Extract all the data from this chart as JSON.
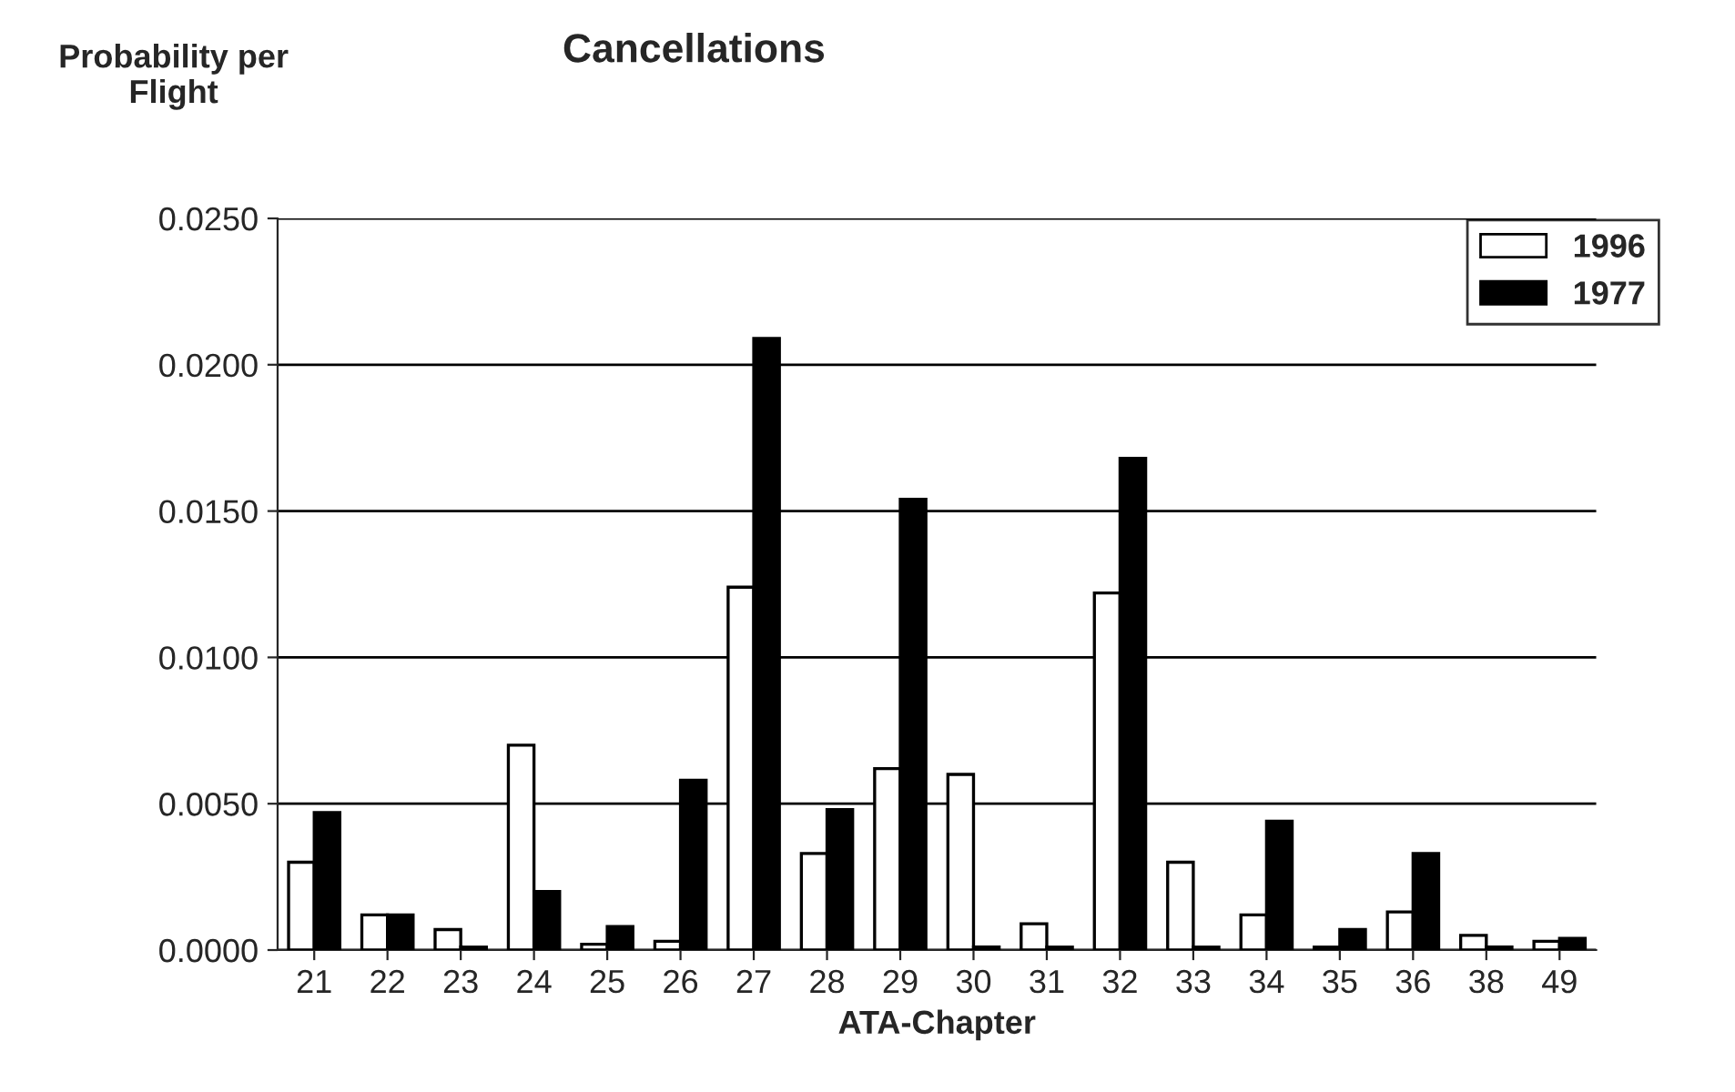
{
  "chart_data": {
    "type": "bar",
    "title": "Cancellations",
    "xlabel": "ATA-Chapter",
    "ylabel": "Probability per\nFlight",
    "categories": [
      "21",
      "22",
      "23",
      "24",
      "25",
      "26",
      "27",
      "28",
      "29",
      "30",
      "31",
      "32",
      "33",
      "34",
      "35",
      "36",
      "38",
      "49"
    ],
    "series": [
      {
        "name": "1996",
        "color": "#ffffff",
        "values": [
          0.003,
          0.0012,
          0.0007,
          0.007,
          0.0002,
          0.0003,
          0.0124,
          0.0033,
          0.0062,
          0.006,
          0.0009,
          0.0122,
          0.003,
          0.0012,
          0.0001,
          0.0013,
          0.0005,
          0.0003
        ]
      },
      {
        "name": "1977",
        "color": "#000000",
        "values": [
          0.0047,
          0.0012,
          0.0001,
          0.002,
          0.0008,
          0.0058,
          0.0209,
          0.0048,
          0.0154,
          0.0001,
          0.0001,
          0.0168,
          0.0001,
          0.0044,
          0.0007,
          0.0033,
          0.0001,
          0.0004
        ]
      }
    ],
    "ylim": [
      0,
      0.025
    ],
    "yticks": [
      {
        "value": 0,
        "label": "0.0000"
      },
      {
        "value": 0.005,
        "label": "0.0050"
      },
      {
        "value": 0.01,
        "label": "0.0100"
      },
      {
        "value": 0.015,
        "label": "0.0150"
      },
      {
        "value": 0.02,
        "label": "0.0200"
      },
      {
        "value": 0.025,
        "label": "0.0250"
      }
    ],
    "grid": "y",
    "legend": "top right"
  }
}
